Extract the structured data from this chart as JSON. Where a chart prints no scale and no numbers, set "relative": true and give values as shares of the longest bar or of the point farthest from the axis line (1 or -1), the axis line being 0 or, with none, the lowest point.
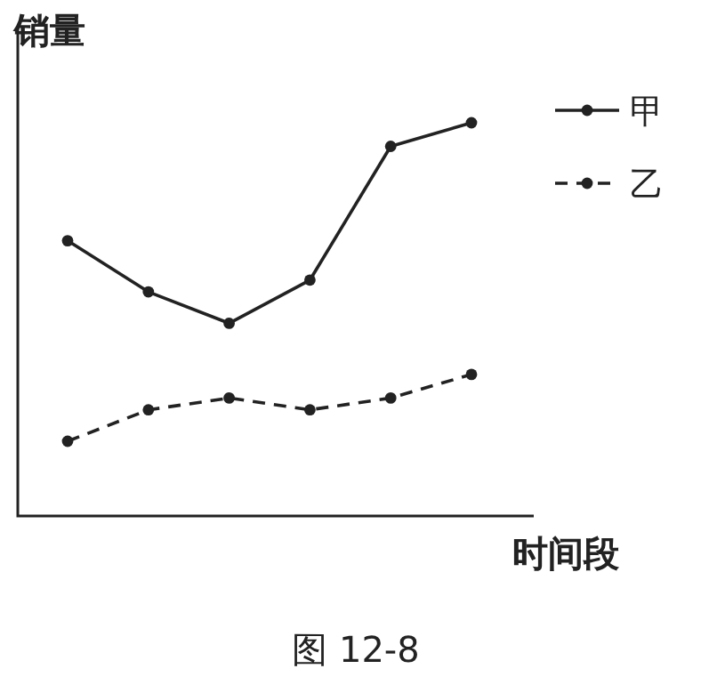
{
  "chart_data": {
    "type": "line",
    "relative": true,
    "ylabel": "销量",
    "xlabel": "时间段",
    "annotations": [
      "图 12-8"
    ],
    "categories": [
      null,
      null,
      null,
      null,
      null,
      null
    ],
    "marker": "circle",
    "legend": "top right",
    "grid": false,
    "series": [
      {
        "name": "甲",
        "color": "#222222",
        "line_style": "solid",
        "values": [
          0.7,
          0.57,
          0.49,
          0.6,
          0.94,
          1
        ]
      },
      {
        "name": "乙",
        "color": "#222222",
        "line_style": "dashed",
        "values": [
          0.19,
          0.27,
          0.3,
          0.27,
          0.3,
          0.36
        ]
      }
    ]
  }
}
